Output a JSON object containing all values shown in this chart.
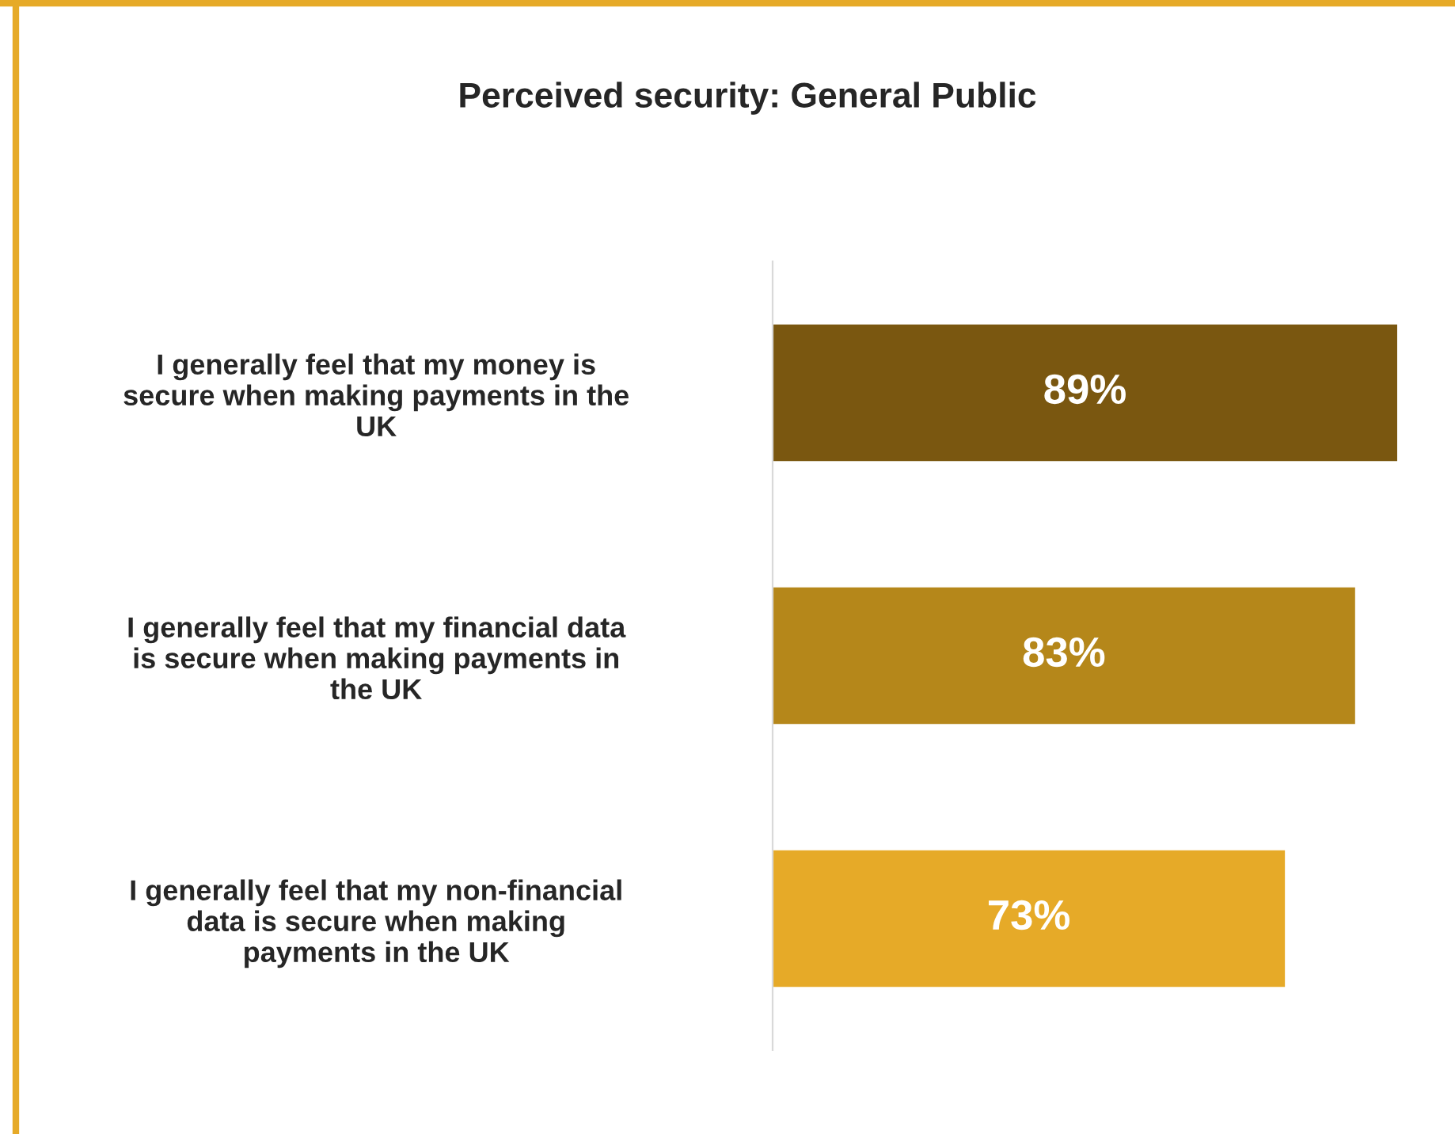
{
  "chart_data": {
    "type": "bar",
    "orientation": "horizontal",
    "title": "Perceived security: General Public",
    "categories": [
      "I generally feel that my money is\nsecure when making payments in the\nUK",
      "I generally feel that my financial data\nis secure when making payments in\nthe UK",
      "I generally feel that my non-financial\ndata is secure when making\npayments in the UK"
    ],
    "values": [
      89,
      83,
      73
    ],
    "colors": [
      "#7a5710",
      "#b5871a",
      "#e6aa28"
    ],
    "value_labels": [
      "89%",
      "83%",
      "73%"
    ],
    "tick_labels": "y",
    "grid": false,
    "legend": false
  }
}
